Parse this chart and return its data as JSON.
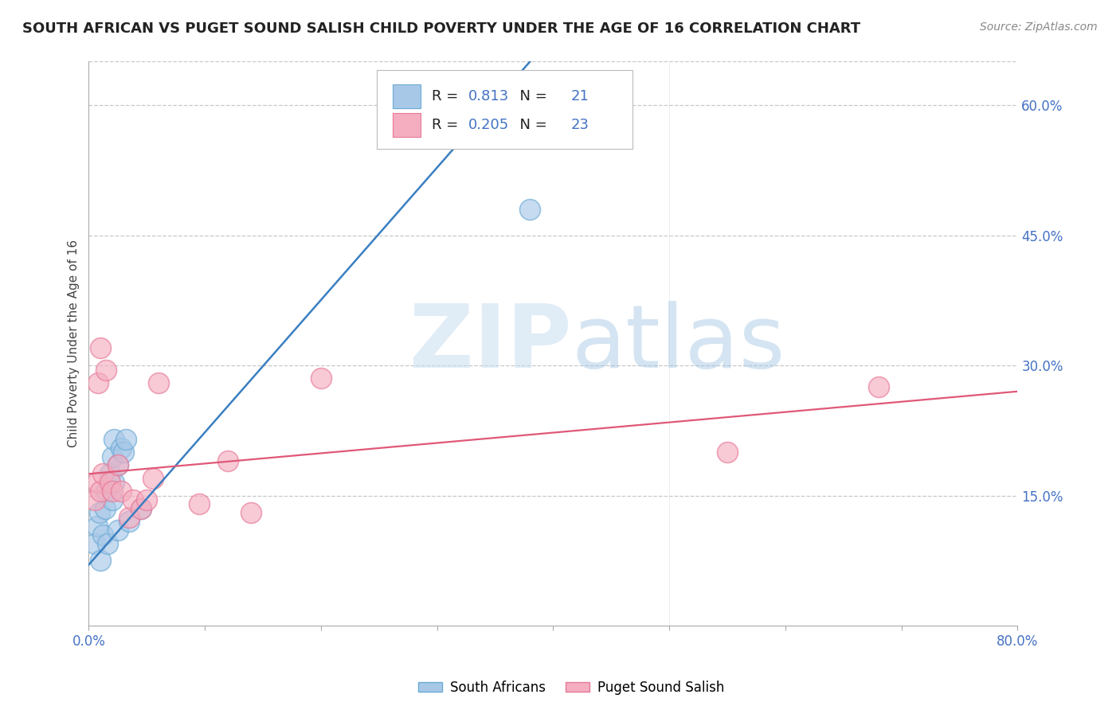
{
  "title": "SOUTH AFRICAN VS PUGET SOUND SALISH CHILD POVERTY UNDER THE AGE OF 16 CORRELATION CHART",
  "source": "Source: ZipAtlas.com",
  "ylabel": "Child Poverty Under the Age of 16",
  "xlim": [
    0,
    0.8
  ],
  "ylim": [
    0,
    0.65
  ],
  "right_yticks": [
    0.15,
    0.3,
    0.45,
    0.6
  ],
  "right_yticklabels": [
    "15.0%",
    "30.0%",
    "45.0%",
    "60.0%"
  ],
  "xticks": [
    0.0,
    0.1,
    0.2,
    0.3,
    0.4,
    0.5,
    0.6,
    0.7,
    0.8
  ],
  "watermark_zip": "ZIP",
  "watermark_atlas": "atlas",
  "blue_R": "0.813",
  "blue_N": "21",
  "pink_R": "0.205",
  "pink_N": "23",
  "blue_label": "South Africans",
  "pink_label": "Puget Sound Salish",
  "blue_color": "#a8c8e8",
  "pink_color": "#f4aec0",
  "blue_edge_color": "#6aaad4",
  "pink_edge_color": "#e87898",
  "blue_line_color": "#3a7fc1",
  "pink_line_color": "#e05878",
  "blue_scatter_x": [
    0.005,
    0.007,
    0.009,
    0.01,
    0.012,
    0.014,
    0.015,
    0.016,
    0.018,
    0.02,
    0.02,
    0.022,
    0.022,
    0.025,
    0.025,
    0.028,
    0.03,
    0.032,
    0.035,
    0.045,
    0.38
  ],
  "blue_scatter_y": [
    0.095,
    0.115,
    0.13,
    0.075,
    0.105,
    0.135,
    0.155,
    0.095,
    0.175,
    0.145,
    0.195,
    0.165,
    0.215,
    0.11,
    0.185,
    0.205,
    0.2,
    0.215,
    0.12,
    0.135,
    0.48
  ],
  "pink_scatter_x": [
    0.005,
    0.007,
    0.008,
    0.01,
    0.01,
    0.012,
    0.015,
    0.018,
    0.02,
    0.025,
    0.028,
    0.035,
    0.038,
    0.045,
    0.05,
    0.055,
    0.06,
    0.095,
    0.12,
    0.14,
    0.2,
    0.55,
    0.68
  ],
  "pink_scatter_y": [
    0.145,
    0.165,
    0.28,
    0.155,
    0.32,
    0.175,
    0.295,
    0.165,
    0.155,
    0.185,
    0.155,
    0.125,
    0.145,
    0.135,
    0.145,
    0.17,
    0.28,
    0.14,
    0.19,
    0.13,
    0.285,
    0.2,
    0.275
  ],
  "blue_line_x": [
    -0.01,
    0.38
  ],
  "blue_line_y": [
    0.055,
    0.65
  ],
  "pink_line_x": [
    0.0,
    0.8
  ],
  "pink_line_y": [
    0.175,
    0.27
  ],
  "title_fontsize": 13,
  "source_fontsize": 10,
  "axis_label_fontsize": 11,
  "tick_fontsize": 12,
  "scatter_size": 350,
  "background_color": "#ffffff",
  "grid_color": "#c8c8c8",
  "tick_color": "#4472c4"
}
